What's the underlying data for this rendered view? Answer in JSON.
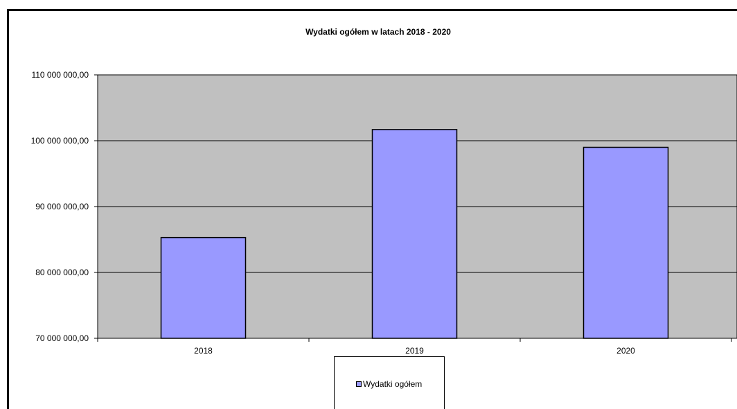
{
  "chart_data": {
    "type": "bar",
    "title": "Wydatki ogółem w latach 2018 - 2020",
    "categories": [
      "2018",
      "2019",
      "2020"
    ],
    "series": [
      {
        "name": "Wydatki ogółem",
        "values": [
          85300000,
          101700000,
          99000000
        ],
        "color": "#9999ff"
      }
    ],
    "ylim": [
      70000000,
      110000000
    ],
    "yticks": [
      70000000,
      80000000,
      90000000,
      100000000,
      110000000
    ],
    "ytick_labels": [
      "70 000 000,00",
      "80 000 000,00",
      "90 000 000,00",
      "100 000 000,00",
      "110 000 000,00"
    ],
    "xlabel": "",
    "ylabel": "",
    "grid": true,
    "legend": "bottom",
    "plot_background": "#c0c0c0"
  }
}
